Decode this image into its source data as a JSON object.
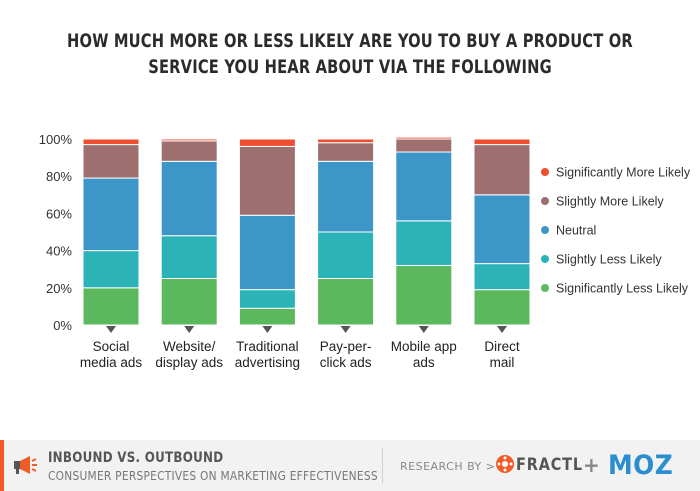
{
  "title": {
    "line1": "HOW MUCH MORE OR LESS LIKELY ARE YOU TO BUY A PRODUCT OR",
    "line2": "SERVICE YOU HEAR ABOUT VIA THE FOLLOWING"
  },
  "chart_data": {
    "type": "bar",
    "stacked": true,
    "categories": [
      [
        "Social",
        "media ads"
      ],
      [
        "Website/",
        "display ads"
      ],
      [
        "Traditional",
        "advertising"
      ],
      [
        "Pay-per-",
        "click ads"
      ],
      [
        "Mobile app",
        "ads"
      ],
      [
        "Direct",
        "mail"
      ]
    ],
    "series": [
      {
        "name": "Significantly Less Likely",
        "color": "#5cb85c",
        "values": [
          20,
          25,
          9,
          25,
          32,
          19
        ]
      },
      {
        "name": "Slightly Less Likely",
        "color": "#2bb3b8",
        "values": [
          20,
          23,
          10,
          25,
          24,
          14
        ]
      },
      {
        "name": "Neutral",
        "color": "#3d96c8",
        "values": [
          39,
          40,
          40,
          38,
          37,
          37
        ]
      },
      {
        "name": "Slightly More Likely",
        "color": "#9e6f6f",
        "values": [
          18,
          11,
          37,
          10,
          7,
          27
        ]
      },
      {
        "name": "Significantly More Likely",
        "color": "#f04e30",
        "values": [
          3,
          1,
          4,
          2,
          1,
          3
        ]
      }
    ],
    "legend_order": [
      "Significantly More Likely",
      "Slightly More Likely",
      "Neutral",
      "Slightly Less Likely",
      "Significantly Less Likely"
    ],
    "yticks": [
      "0%",
      "20%",
      "40%",
      "60%",
      "80%",
      "100%"
    ],
    "ylim": [
      0,
      100
    ],
    "legend_position": "right",
    "grid": false
  },
  "footer": {
    "title": "INBOUND VS. OUTBOUND",
    "subtitle": "CONSUMER PERSPECTIVES ON MARKETING EFFECTIVENESS",
    "research_by": "RESEARCH BY >",
    "fractl": "FRACTL",
    "plus": "+",
    "moz": "MOZ",
    "accent_color": "#f15a29",
    "moz_color": "#2a8ed1"
  }
}
